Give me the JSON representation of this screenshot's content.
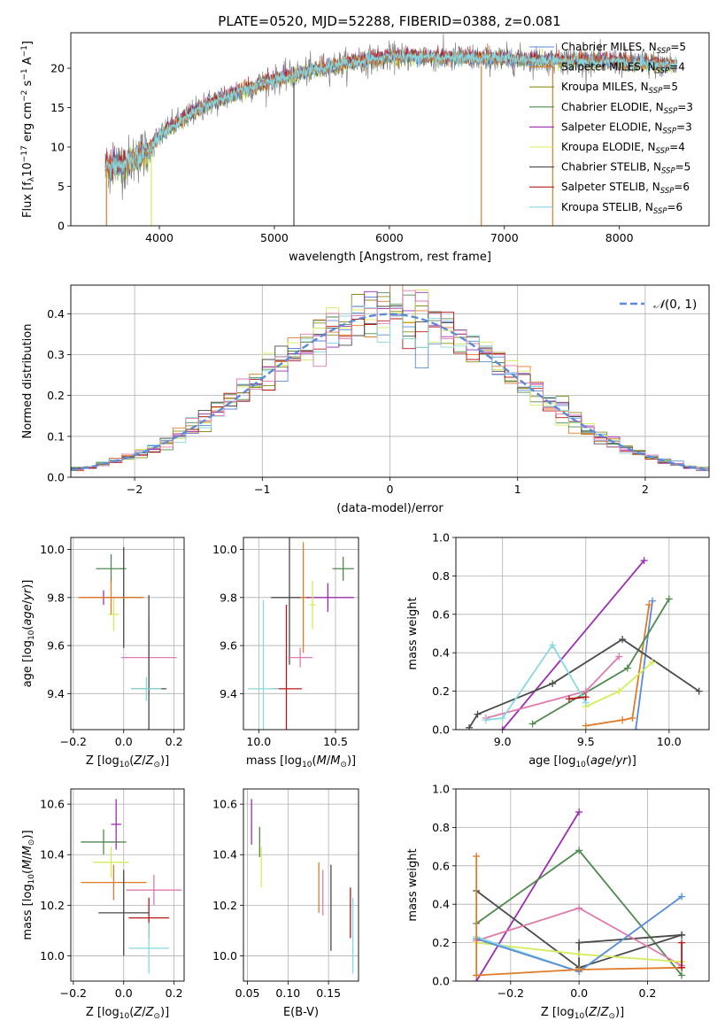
{
  "figure_title": "PLATE=0520, MJD=52288, FIBERID=0388, z=0.081",
  "colors": {
    "chabrier_miles": "#5b8bd8",
    "salpeter_miles": "#e07b28",
    "kroupa_miles": "#8a8f1a",
    "chabrier_elodie": "#4f8a4f",
    "salpeter_elodie": "#9b2fb0",
    "kroupa_elodie": "#d4ec5a",
    "chabrier_stelib": "#4a4a4a",
    "salpeter_stelib": "#b81818",
    "kroupa_stelib": "#86d9e0",
    "pink": "#e07aae",
    "data": "#808080",
    "grid": "#b0b0b0"
  },
  "chart_data": [
    {
      "id": "spectrum",
      "type": "line",
      "title": "PLATE=0520, MJD=52288, FIBERID=0388, z=0.081",
      "xlabel": "wavelength [Angstrom, rest frame]",
      "ylabel": "Flux [fλ10⁻¹⁷ erg cm⁻² s⁻¹ A⁻¹]",
      "xlim": [
        3230,
        8780
      ],
      "ylim": [
        0,
        24.5
      ],
      "xticks": [
        4000,
        5000,
        6000,
        7000,
        8000
      ],
      "yticks": [
        0,
        5,
        10,
        15,
        20
      ],
      "grid": false,
      "legend_position": "right",
      "legend": [
        {
          "label": "Chabrier MILES, N",
          "sub": "SSP",
          "suffix": "=5",
          "color": "#5b8bd8"
        },
        {
          "label": "Salpeter MILES, N",
          "sub": "SSP",
          "suffix": "=4",
          "color": "#e07b28"
        },
        {
          "label": "Kroupa MILES, N",
          "sub": "SSP",
          "suffix": "=5",
          "color": "#8a8f1a"
        },
        {
          "label": "Chabrier ELODIE, N",
          "sub": "SSP",
          "suffix": "=3",
          "color": "#4f8a4f"
        },
        {
          "label": "Salpeter ELODIE, N",
          "sub": "SSP",
          "suffix": "=3",
          "color": "#9b2fb0"
        },
        {
          "label": "Kroupa ELODIE, N",
          "sub": "SSP",
          "suffix": "=4",
          "color": "#d4ec5a"
        },
        {
          "label": "Chabrier STELIB, N",
          "sub": "SSP",
          "suffix": "=5",
          "color": "#4a4a4a"
        },
        {
          "label": "Salpeter STELIB, N",
          "sub": "SSP",
          "suffix": "=6",
          "color": "#b81818"
        },
        {
          "label": "Kroupa STELIB, N",
          "sub": "SSP",
          "suffix": "=6",
          "color": "#86d9e0"
        }
      ],
      "trend": {
        "x": [
          3530,
          3700,
          3900,
          4000,
          4200,
          4400,
          4600,
          4800,
          5000,
          5200,
          5400,
          5600,
          5800,
          6000,
          6200,
          6500,
          6800,
          7000,
          7200,
          7400,
          7600,
          7800,
          8000,
          8200,
          8500
        ],
        "y": [
          7.5,
          7.8,
          9.5,
          11.5,
          13.5,
          15.3,
          16.5,
          17.6,
          18.5,
          19.3,
          20.0,
          20.6,
          21.0,
          21.4,
          21.5,
          21.4,
          21.3,
          21.2,
          21.1,
          21.0,
          21.0,
          20.9,
          20.8,
          20.6,
          20.4
        ]
      }
    },
    {
      "id": "residuals",
      "type": "histogram",
      "xlabel": "(data-model)/error",
      "ylabel": "Normed distribution",
      "xlim": [
        -2.5,
        2.5
      ],
      "ylim": [
        0,
        0.47
      ],
      "xticks": [
        -2,
        -1,
        0,
        1,
        2
      ],
      "yticks": [
        0.0,
        0.1,
        0.2,
        0.3,
        0.4
      ],
      "grid": true,
      "legend_position": "top-right",
      "normal_curve_label": "𝒩(0, 1)",
      "normal_curve_color": "#5b8bd8"
    },
    {
      "id": "age_vs_Z",
      "type": "errorbar",
      "xlabel": "Z [log10(Z/Z⊙)]",
      "ylabel": "age  [log10(age/yr)]",
      "xlim": [
        -0.21,
        0.24
      ],
      "ylim": [
        9.25,
        10.05
      ],
      "xticks": [
        -0.2,
        0.0,
        0.2
      ],
      "yticks": [
        9.4,
        9.6,
        9.8,
        10.0
      ],
      "grid": true,
      "points": [
        {
          "x": -0.05,
          "y": 9.92,
          "xerr": 0.06,
          "yerr": 0.06,
          "color": "#4f8a4f"
        },
        {
          "x": -0.08,
          "y": 9.8,
          "xerr": 0.09,
          "yerr": 0.03,
          "color": "#9b2fb0"
        },
        {
          "x": -0.04,
          "y": 9.73,
          "xerr": 0.02,
          "yerr": 0.07,
          "color": "#d4ec5a"
        },
        {
          "x": 0.0,
          "y": 9.8,
          "xerr": 0.07,
          "yerr": 0.21,
          "color": "#4a4a4a"
        },
        {
          "x": -0.05,
          "y": 9.8,
          "xerr": 0.13,
          "yerr": 0.07,
          "color": "#e07b28"
        },
        {
          "x": 0.1,
          "y": 9.55,
          "xerr": 0.11,
          "yerr": 0.16,
          "color": "#e07aae"
        },
        {
          "x": 0.1,
          "y": 9.42,
          "xerr": 0.07,
          "yerr": 0.39,
          "color": "#4a4a4a"
        },
        {
          "x": 0.09,
          "y": 9.42,
          "xerr": 0.06,
          "yerr": 0.05,
          "color": "#86d9e0"
        }
      ]
    },
    {
      "id": "age_vs_mass",
      "type": "errorbar",
      "xlabel": "mass [log10(M/M⊙)]",
      "ylabel": "",
      "xlim": [
        9.9,
        10.65
      ],
      "ylim": [
        9.25,
        10.05
      ],
      "xticks": [
        10.0,
        10.5
      ],
      "yticks": [
        9.4,
        9.6,
        9.8,
        10.0
      ],
      "grid": true,
      "points": [
        {
          "x": 10.55,
          "y": 9.92,
          "xerr": 0.07,
          "yerr": 0.05,
          "color": "#4f8a4f"
        },
        {
          "x": 10.45,
          "y": 9.8,
          "xerr": 0.17,
          "yerr": 0.06,
          "color": "#9b2fb0"
        },
        {
          "x": 10.35,
          "y": 9.77,
          "xerr": 0.02,
          "yerr": 0.1,
          "color": "#d4ec5a"
        },
        {
          "x": 10.2,
          "y": 9.8,
          "xerr": 0.12,
          "yerr": 0.28,
          "color": "#4a4a4a"
        },
        {
          "x": 10.29,
          "y": 9.8,
          "xerr": 0.02,
          "yerr": 0.23,
          "color": "#e07b28"
        },
        {
          "x": 10.27,
          "y": 9.55,
          "xerr": 0.08,
          "yerr": 0.04,
          "color": "#e07aae"
        },
        {
          "x": 10.18,
          "y": 9.42,
          "xerr": 0.1,
          "yerr": 0.35,
          "color": "#b81818"
        },
        {
          "x": 10.03,
          "y": 9.42,
          "xerr": 0.1,
          "yerr": 0.37,
          "color": "#86d9e0"
        }
      ]
    },
    {
      "id": "mass_weight_vs_age",
      "type": "line",
      "xlabel": "age  [log10(age/yr)]",
      "ylabel": "mass weight",
      "xlim": [
        8.72,
        10.24
      ],
      "ylim": [
        0,
        1.0
      ],
      "xticks": [
        9.0,
        9.5,
        10.0
      ],
      "yticks": [
        0.0,
        0.2,
        0.4,
        0.6,
        0.8,
        1.0
      ],
      "grid": true,
      "series": [
        {
          "color": "#9b2fb0",
          "x": [
            9.0,
            9.85
          ],
          "y": [
            0.0,
            0.88
          ]
        },
        {
          "color": "#5b8bd8",
          "x": [
            9.8,
            9.9
          ],
          "y": [
            0.0,
            0.67
          ]
        },
        {
          "color": "#e07b28",
          "x": [
            9.5,
            9.72,
            9.78,
            9.88
          ],
          "y": [
            0.02,
            0.05,
            0.06,
            0.65
          ]
        },
        {
          "color": "#4f8a4f",
          "x": [
            9.18,
            9.75,
            10.0
          ],
          "y": [
            0.03,
            0.32,
            0.68
          ]
        },
        {
          "color": "#4a4a4a",
          "x": [
            8.8,
            8.85,
            9.3,
            9.72,
            10.18
          ],
          "y": [
            0.01,
            0.08,
            0.24,
            0.47,
            0.2
          ]
        },
        {
          "color": "#e07aae",
          "x": [
            8.9,
            9.5,
            9.7
          ],
          "y": [
            0.06,
            0.2,
            0.38
          ]
        },
        {
          "color": "#d4ec5a",
          "x": [
            9.5,
            9.7,
            9.9
          ],
          "y": [
            0.12,
            0.2,
            0.35
          ]
        },
        {
          "color": "#86d9e0",
          "x": [
            8.9,
            9.0,
            9.3,
            9.5
          ],
          "y": [
            0.05,
            0.06,
            0.44,
            0.14
          ]
        },
        {
          "color": "#b81818",
          "x": [
            9.4,
            9.5
          ],
          "y": [
            0.16,
            0.17
          ]
        }
      ]
    },
    {
      "id": "mass_vs_Z",
      "type": "errorbar",
      "xlabel": "Z [log10(Z/Z⊙)]",
      "ylabel": "mass [log10(M/M⊙)]",
      "xlim": [
        -0.21,
        0.24
      ],
      "ylim": [
        9.9,
        10.66
      ],
      "xticks": [
        -0.2,
        0.0,
        0.2
      ],
      "yticks": [
        10.0,
        10.2,
        10.4,
        10.6
      ],
      "grid": true,
      "points": [
        {
          "x": -0.08,
          "y": 10.45,
          "xerr": 0.09,
          "yerr": 0.05,
          "color": "#4f8a4f"
        },
        {
          "x": -0.03,
          "y": 10.52,
          "xerr": 0.02,
          "yerr": 0.1,
          "color": "#9b2fb0"
        },
        {
          "x": -0.05,
          "y": 10.37,
          "xerr": 0.07,
          "yerr": 0.06,
          "color": "#d4ec5a"
        },
        {
          "x": -0.04,
          "y": 10.29,
          "xerr": 0.13,
          "yerr": 0.07,
          "color": "#e07b28"
        },
        {
          "x": 0.12,
          "y": 10.26,
          "xerr": 0.11,
          "yerr": 0.06,
          "color": "#e07aae"
        },
        {
          "x": 0.0,
          "y": 10.17,
          "xerr": 0.1,
          "yerr": 0.17,
          "color": "#4a4a4a"
        },
        {
          "x": 0.1,
          "y": 10.15,
          "xerr": 0.08,
          "yerr": 0.08,
          "color": "#b81818"
        },
        {
          "x": 0.1,
          "y": 10.03,
          "xerr": 0.08,
          "yerr": 0.1,
          "color": "#86d9e0"
        }
      ]
    },
    {
      "id": "mass_vs_ebv",
      "type": "errorbar",
      "xlabel": "E(B-V)",
      "ylabel": "",
      "xlim": [
        0.045,
        0.187
      ],
      "ylim": [
        9.9,
        10.66
      ],
      "xticks": [
        0.05,
        0.1,
        0.15
      ],
      "yticks": [
        10.0,
        10.2,
        10.4,
        10.6
      ],
      "grid": true,
      "points": [
        {
          "x": 0.055,
          "y": 10.53,
          "yerr": 0.09,
          "color": "#9b2fb0"
        },
        {
          "x": 0.065,
          "y": 10.45,
          "yerr": 0.06,
          "color": "#4f8a4f"
        },
        {
          "x": 0.067,
          "y": 10.35,
          "yerr": 0.08,
          "color": "#d4ec5a"
        },
        {
          "x": 0.138,
          "y": 10.27,
          "yerr": 0.1,
          "color": "#e07b28"
        },
        {
          "x": 0.143,
          "y": 10.25,
          "yerr": 0.09,
          "color": "#e07aae"
        },
        {
          "x": 0.153,
          "y": 10.19,
          "yerr": 0.17,
          "color": "#4a4a4a"
        },
        {
          "x": 0.177,
          "y": 10.17,
          "yerr": 0.1,
          "color": "#b81818"
        },
        {
          "x": 0.18,
          "y": 10.08,
          "yerr": 0.15,
          "color": "#86d9e0"
        }
      ]
    },
    {
      "id": "mass_weight_vs_Z",
      "type": "line",
      "xlabel": "Z [log10(Z/Z⊙)]",
      "ylabel": "mass weight",
      "xlim": [
        -0.36,
        0.38
      ],
      "ylim": [
        0,
        1.0
      ],
      "xticks": [
        -0.2,
        0.0,
        0.2
      ],
      "yticks": [
        0.0,
        0.2,
        0.4,
        0.6,
        0.8,
        1.0
      ],
      "grid": true,
      "series": [
        {
          "color": "#9b2fb0",
          "x": [
            -0.3,
            0.0
          ],
          "y": [
            0.0,
            0.88
          ]
        },
        {
          "color": "#4f8a4f",
          "x": [
            -0.3,
            0.0,
            0.3
          ],
          "y": [
            0.3,
            0.68,
            0.03
          ]
        },
        {
          "color": "#4a4a4a",
          "x": [
            -0.3,
            0.0,
            0.3
          ],
          "y": [
            0.47,
            0.07,
            0.24
          ]
        },
        {
          "color": "#4a4a4a",
          "x": [
            0.0,
            0.0,
            0.3
          ],
          "y": [
            0.07,
            0.2,
            0.24
          ]
        },
        {
          "color": "#e07aae",
          "x": [
            -0.3,
            0.0,
            0.3
          ],
          "y": [
            0.21,
            0.38,
            0.08
          ]
        },
        {
          "color": "#d4ec5a",
          "x": [
            -0.3,
            0.0,
            0.3
          ],
          "y": [
            0.2,
            0.14,
            0.1
          ]
        },
        {
          "color": "#86d9e0",
          "x": [
            -0.3,
            0.0,
            0.3
          ],
          "y": [
            0.23,
            0.05,
            0.44
          ]
        },
        {
          "color": "#5b8bd8",
          "x": [
            -0.3,
            0.0,
            0.3
          ],
          "y": [
            0.22,
            0.05,
            0.44
          ]
        },
        {
          "color": "#e07b28",
          "x": [
            -0.3,
            0.0,
            0.3
          ],
          "y": [
            0.03,
            0.06,
            0.07
          ]
        },
        {
          "color": "#e07b28",
          "x": [
            -0.3,
            -0.3
          ],
          "y": [
            0.03,
            0.65
          ]
        },
        {
          "color": "#b81818",
          "x": [
            0.3,
            0.3
          ],
          "y": [
            0.07,
            0.2
          ]
        }
      ]
    }
  ]
}
